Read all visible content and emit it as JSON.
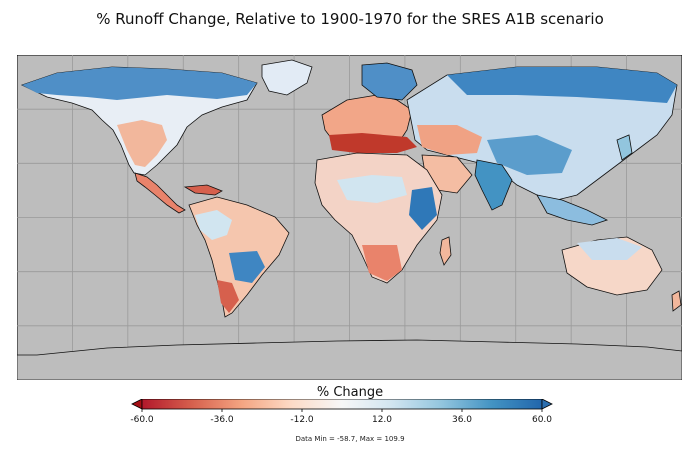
{
  "title": "% Runoff Change, Relative to 1900-1970 for the SRES A1B scenario",
  "colorbar": {
    "label": "% Change",
    "min": -60.0,
    "max": 60.0,
    "ticks": [
      "-60.0",
      "-36.0",
      "-12.0",
      "12.0",
      "36.0",
      "60.0"
    ],
    "colors": [
      "#b2182b",
      "#d6604d",
      "#f4a582",
      "#fddbc7",
      "#f7f7f7",
      "#d1e5f0",
      "#92c5de",
      "#4393c3",
      "#2166ac"
    ],
    "extend_low_color": "#a50f15",
    "extend_high_color": "#2c6fb0"
  },
  "data_minmax": "Data Min = -58.7, Max = 109.9",
  "map": {
    "ocean_color": "#bdbdbd",
    "grid_color": "#9a9a9a",
    "coastline_color": "#111111"
  }
}
